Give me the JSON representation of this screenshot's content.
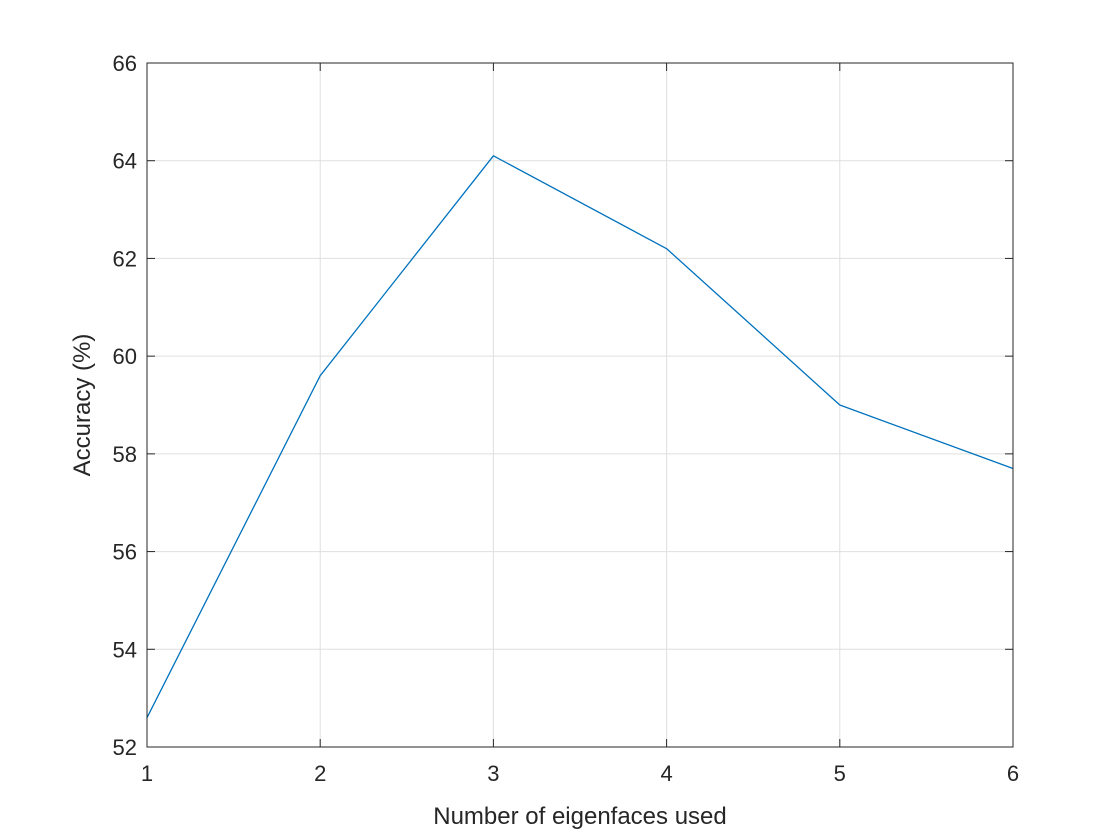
{
  "chart_data": {
    "type": "line",
    "title": "",
    "xlabel": "Number of eigenfaces used",
    "ylabel": "Accuracy (%)",
    "xlim": [
      1,
      6
    ],
    "ylim": [
      52,
      66
    ],
    "xticks": [
      1,
      2,
      3,
      4,
      5,
      6
    ],
    "yticks": [
      52,
      54,
      56,
      58,
      60,
      62,
      64,
      66
    ],
    "grid": true,
    "legend": "none",
    "series": [
      {
        "color": "#0072bd",
        "x": [
          1,
          2,
          3,
          4,
          5,
          6
        ],
        "y": [
          52.6,
          59.6,
          64.1,
          62.2,
          59.0,
          57.7
        ]
      }
    ]
  }
}
